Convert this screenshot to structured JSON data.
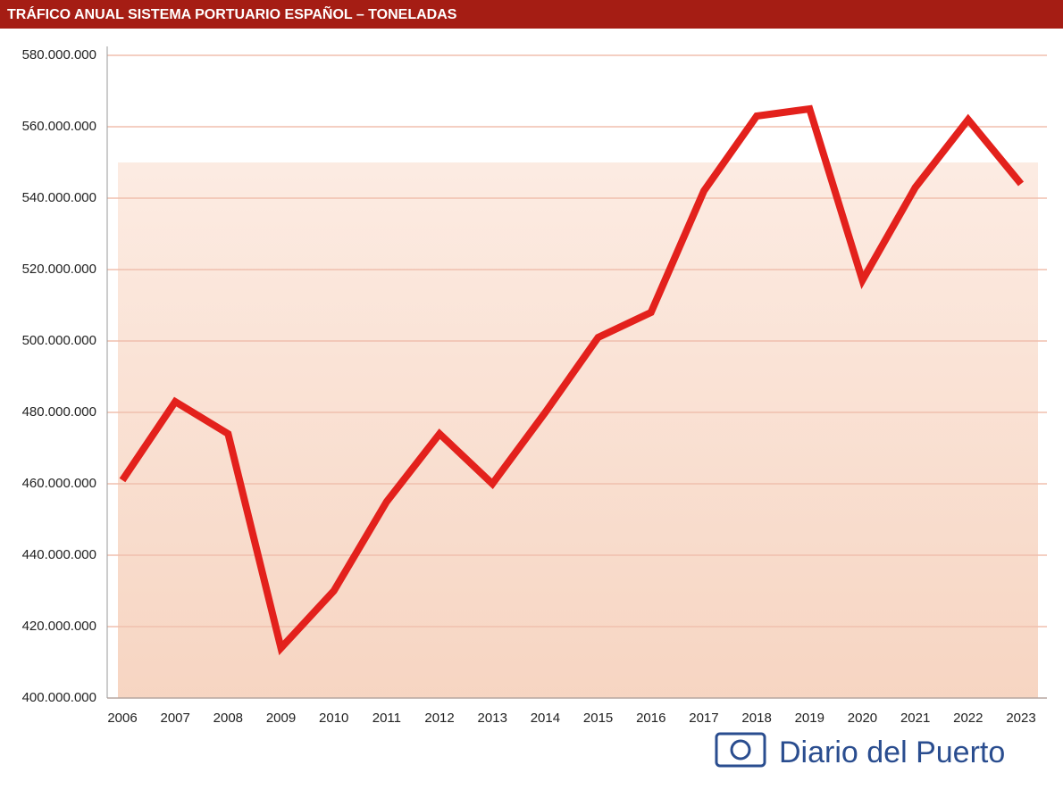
{
  "chart_data": {
    "type": "line",
    "title": "TRÁFICO ANUAL SISTEMA PORTUARIO ESPAÑOL – TONELADAS",
    "categories": [
      "2006",
      "2007",
      "2008",
      "2009",
      "2010",
      "2011",
      "2012",
      "2013",
      "2014",
      "2015",
      "2016",
      "2017",
      "2018",
      "2019",
      "2020",
      "2021",
      "2022",
      "2023"
    ],
    "values": [
      461000000,
      483000000,
      474000000,
      414000000,
      430000000,
      455000000,
      474000000,
      460000000,
      480000000,
      501000000,
      508000000,
      542000000,
      563000000,
      565000000,
      517000000,
      543000000,
      562000000,
      544000000
    ],
    "color": "#e3211c",
    "ylim": [
      400000000,
      580000000
    ],
    "yticks": [
      {
        "value": 400000000,
        "label": "400.000.000"
      },
      {
        "value": 420000000,
        "label": "420.000.000"
      },
      {
        "value": 440000000,
        "label": "440.000.000"
      },
      {
        "value": 460000000,
        "label": "460.000.000"
      },
      {
        "value": 480000000,
        "label": "480.000.000"
      },
      {
        "value": 500000000,
        "label": "500.000.000"
      },
      {
        "value": 520000000,
        "label": "520.000.000"
      },
      {
        "value": 540000000,
        "label": "540.000.000"
      },
      {
        "value": 560000000,
        "label": "560.000.000"
      },
      {
        "value": 580000000,
        "label": "580.000.000"
      }
    ],
    "grid": true,
    "watermark": "Diario del Puerto"
  }
}
